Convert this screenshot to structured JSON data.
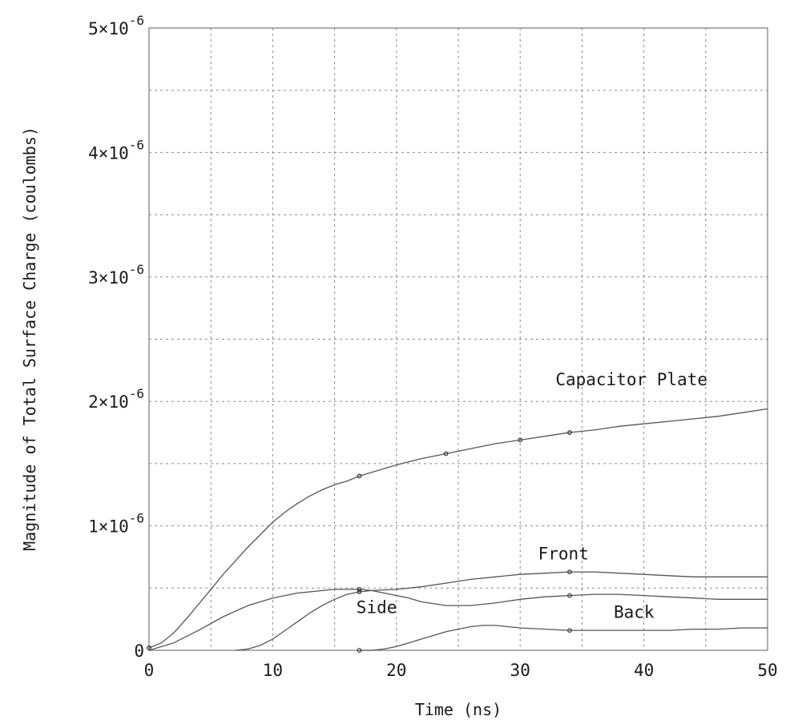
{
  "chart_data": {
    "type": "line",
    "title": "",
    "xlabel": "Time (ns)",
    "ylabel": "Magnitude of Total Surface Charge (coulombs)",
    "xlim": [
      0,
      50
    ],
    "ylim": [
      0,
      5e-06
    ],
    "grid": true,
    "legend": "none",
    "x_ticks": [
      {
        "value": 0,
        "label": "0"
      },
      {
        "value": 10,
        "label": "10"
      },
      {
        "value": 20,
        "label": "20"
      },
      {
        "value": 30,
        "label": "30"
      },
      {
        "value": 40,
        "label": "40"
      },
      {
        "value": 50,
        "label": "50"
      }
    ],
    "y_ticks": [
      {
        "value": 0,
        "base": "0",
        "exp": ""
      },
      {
        "value": 1e-06,
        "base": "1×10",
        "exp": "-6"
      },
      {
        "value": 2e-06,
        "base": "2×10",
        "exp": "-6"
      },
      {
        "value": 3e-06,
        "base": "3×10",
        "exp": "-6"
      },
      {
        "value": 4e-06,
        "base": "4×10",
        "exp": "-6"
      },
      {
        "value": 5e-06,
        "base": "5×10",
        "exp": "-6"
      }
    ],
    "series": [
      {
        "name": "Capacitor Plate",
        "x": [
          0,
          1,
          2,
          3,
          4,
          5,
          6,
          7,
          8,
          9,
          10,
          11,
          12,
          13,
          14,
          15,
          16,
          17,
          18,
          19,
          20,
          22,
          24,
          26,
          28,
          30,
          32,
          34,
          36,
          38,
          40,
          42,
          44,
          46,
          48,
          50
        ],
        "y": [
          2e-08,
          6e-08,
          1.4e-07,
          2.5e-07,
          3.7e-07,
          4.9e-07,
          6.1e-07,
          7.2e-07,
          8.3e-07,
          9.3e-07,
          1.03e-06,
          1.11e-06,
          1.18e-06,
          1.24e-06,
          1.29e-06,
          1.33e-06,
          1.36e-06,
          1.4e-06,
          1.43e-06,
          1.46e-06,
          1.49e-06,
          1.54e-06,
          1.58e-06,
          1.62e-06,
          1.66e-06,
          1.69e-06,
          1.72e-06,
          1.75e-06,
          1.77e-06,
          1.8e-06,
          1.82e-06,
          1.84e-06,
          1.86e-06,
          1.88e-06,
          1.91e-06,
          1.94e-06
        ],
        "markers_x": [
          0,
          17,
          24,
          30,
          34
        ]
      },
      {
        "name": "Front",
        "x": [
          7,
          8,
          9,
          10,
          11,
          12,
          13,
          14,
          15,
          16,
          17,
          18,
          20,
          22,
          24,
          26,
          28,
          30,
          32,
          34,
          36,
          38,
          40,
          42,
          44,
          46,
          48,
          50
        ],
        "y": [
          0,
          1e-08,
          4e-08,
          9e-08,
          1.6e-07,
          2.3e-07,
          3e-07,
          3.6e-07,
          4.1e-07,
          4.5e-07,
          4.7e-07,
          4.8e-07,
          4.9e-07,
          5.1e-07,
          5.4e-07,
          5.7e-07,
          5.9e-07,
          6.1e-07,
          6.2e-07,
          6.3e-07,
          6.3e-07,
          6.2e-07,
          6.1e-07,
          6e-07,
          5.9e-07,
          5.9e-07,
          5.9e-07,
          5.9e-07
        ],
        "markers_x": [
          17,
          34
        ]
      },
      {
        "name": "Side",
        "x": [
          0,
          2,
          4,
          6,
          8,
          10,
          11,
          12,
          13,
          14,
          15,
          16,
          17,
          18,
          19,
          20,
          21,
          22,
          24,
          26,
          28,
          30,
          32,
          34,
          36,
          38,
          40,
          42,
          44,
          46,
          48,
          50
        ],
        "y": [
          0,
          6e-08,
          1.6e-07,
          2.7e-07,
          3.6e-07,
          4.2e-07,
          4.4e-07,
          4.6e-07,
          4.7e-07,
          4.8e-07,
          4.9e-07,
          4.9e-07,
          4.9e-07,
          4.8e-07,
          4.6e-07,
          4.4e-07,
          4.2e-07,
          3.9e-07,
          3.6e-07,
          3.6e-07,
          3.8e-07,
          4.1e-07,
          4.3e-07,
          4.4e-07,
          4.5e-07,
          4.5e-07,
          4.4e-07,
          4.3e-07,
          4.2e-07,
          4.1e-07,
          4.1e-07,
          4.1e-07
        ],
        "markers_x": [
          17,
          34
        ]
      },
      {
        "name": "Back",
        "x": [
          17,
          18,
          19,
          20,
          21,
          22,
          24,
          26,
          27,
          28,
          29,
          30,
          32,
          34,
          36,
          38,
          40,
          42,
          44,
          46,
          48,
          50
        ],
        "y": [
          0,
          0,
          1e-08,
          3e-08,
          6e-08,
          9e-08,
          1.5e-07,
          1.9e-07,
          2e-07,
          2e-07,
          1.9e-07,
          1.8e-07,
          1.7e-07,
          1.6e-07,
          1.6e-07,
          1.6e-07,
          1.6e-07,
          1.6e-07,
          1.7e-07,
          1.7e-07,
          1.8e-07,
          1.8e-07
        ],
        "markers_x": [
          17,
          34
        ]
      }
    ],
    "annotations": [
      {
        "text": "Capacitor Plate",
        "x": 39,
        "y": 2.13e-06
      },
      {
        "text": "Front",
        "x": 33.5,
        "y": 7.3e-07
      },
      {
        "text": "Side",
        "x": 18.4,
        "y": 3e-07
      },
      {
        "text": "Back",
        "x": 39.2,
        "y": 2.6e-07
      }
    ]
  }
}
